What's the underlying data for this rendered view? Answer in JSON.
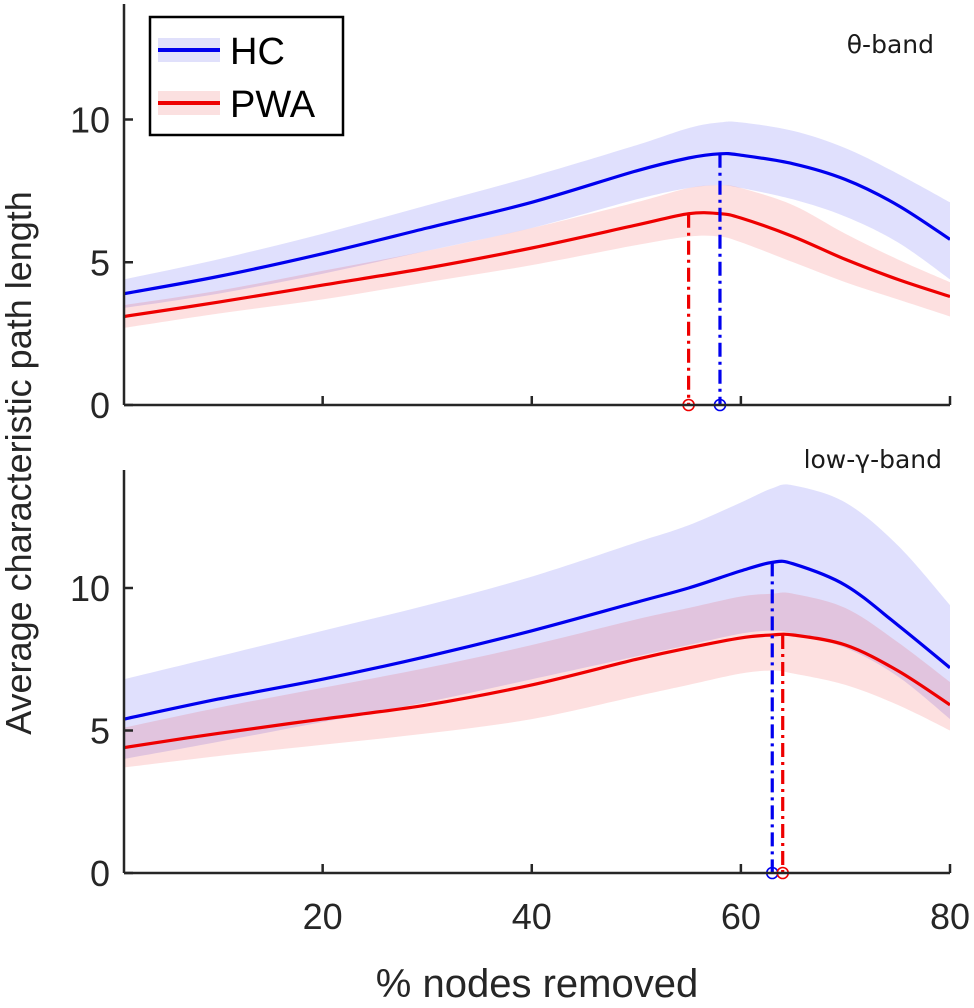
{
  "chart_data": [
    {
      "type": "line",
      "band": "θ-band",
      "xlim": [
        1,
        80
      ],
      "ylim": [
        0,
        14
      ],
      "yticks": [
        0,
        5,
        10
      ],
      "yticklabels": [
        "0",
        "5",
        "10"
      ],
      "xticks": [
        20,
        40,
        60,
        80
      ],
      "xticklabels": [
        "",
        "",
        "",
        ""
      ],
      "x": [
        1,
        10,
        20,
        30,
        40,
        50,
        55,
        58,
        60,
        65,
        70,
        75,
        80
      ],
      "series": [
        {
          "name": "HC",
          "color": "#0000ee",
          "values": [
            3.9,
            4.5,
            5.3,
            6.2,
            7.1,
            8.2,
            8.65,
            8.8,
            8.75,
            8.45,
            7.9,
            7.0,
            5.8
          ],
          "upper": [
            4.4,
            5.1,
            6.0,
            7.0,
            8.0,
            9.1,
            9.7,
            9.9,
            9.9,
            9.6,
            9.0,
            8.1,
            7.1
          ],
          "lower": [
            3.4,
            3.9,
            4.6,
            5.4,
            6.2,
            7.2,
            7.6,
            7.7,
            7.6,
            7.2,
            6.6,
            5.7,
            4.4
          ],
          "peak_x": 58
        },
        {
          "name": "PWA",
          "color": "#ee0000",
          "values": [
            3.1,
            3.6,
            4.2,
            4.8,
            5.5,
            6.3,
            6.7,
            6.7,
            6.55,
            5.9,
            5.1,
            4.4,
            3.8
          ],
          "upper": [
            3.5,
            4.0,
            4.7,
            5.4,
            6.2,
            7.1,
            7.6,
            7.7,
            7.6,
            7.0,
            6.0,
            5.1,
            4.3
          ],
          "lower": [
            2.7,
            3.2,
            3.7,
            4.3,
            4.9,
            5.6,
            5.9,
            5.9,
            5.7,
            5.0,
            4.3,
            3.7,
            3.1
          ],
          "peak_x": 55
        }
      ]
    },
    {
      "type": "line",
      "band": "low-γ-band",
      "xlim": [
        1,
        80
      ],
      "ylim": [
        0,
        14
      ],
      "yticks": [
        0,
        5,
        10
      ],
      "yticklabels": [
        "0",
        "5",
        "10"
      ],
      "xticks": [
        20,
        40,
        60,
        80
      ],
      "xticklabels": [
        "20",
        "40",
        "60",
        "80"
      ],
      "x": [
        1,
        10,
        20,
        30,
        40,
        50,
        55,
        60,
        63,
        65,
        70,
        75,
        80
      ],
      "series": [
        {
          "name": "HC",
          "color": "#0000ee",
          "values": [
            5.4,
            6.1,
            6.8,
            7.6,
            8.5,
            9.5,
            10.0,
            10.6,
            10.9,
            10.85,
            10.1,
            8.7,
            7.2
          ],
          "upper": [
            6.8,
            7.6,
            8.5,
            9.4,
            10.4,
            11.6,
            12.2,
            13.0,
            13.5,
            13.6,
            13.0,
            11.5,
            9.4
          ],
          "lower": [
            4.0,
            4.6,
            5.3,
            6.0,
            6.8,
            7.6,
            8.0,
            8.4,
            8.5,
            8.4,
            7.9,
            6.9,
            5.4
          ],
          "peak_x": 63
        },
        {
          "name": "PWA",
          "color": "#ee0000",
          "values": [
            4.4,
            4.9,
            5.4,
            5.9,
            6.6,
            7.5,
            7.9,
            8.25,
            8.35,
            8.35,
            8.0,
            7.1,
            5.9
          ],
          "upper": [
            5.1,
            5.8,
            6.5,
            7.2,
            8.0,
            8.9,
            9.3,
            9.7,
            9.8,
            9.8,
            9.3,
            8.1,
            6.7
          ],
          "lower": [
            3.7,
            4.1,
            4.5,
            4.9,
            5.4,
            6.2,
            6.6,
            7.0,
            7.1,
            7.0,
            6.6,
            5.9,
            5.0
          ],
          "peak_x": 64
        }
      ]
    }
  ],
  "legend": {
    "location": "top-left",
    "entries": [
      {
        "label": "HC",
        "color": "#0000ee",
        "fill": "#e0e0fb"
      },
      {
        "label": "PWA",
        "color": "#ee0000",
        "fill": "#fbe0e0"
      }
    ]
  },
  "xlabel": "% nodes removed",
  "ylabel": "Average characteristic path length",
  "colors": {
    "hc_fill": "#0000ee",
    "pwa_fill": "#ee0000",
    "axis": "#262626"
  }
}
